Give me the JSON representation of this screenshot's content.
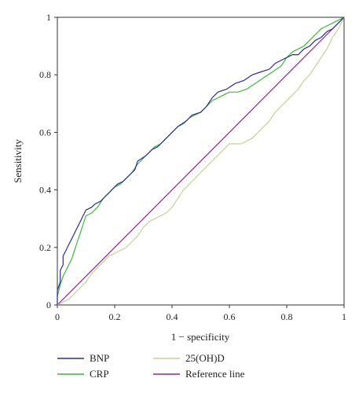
{
  "chart_data": {
    "type": "line",
    "title": "",
    "xlabel": "1 − specificity",
    "ylabel": "Sensitivity",
    "xlim": [
      0,
      1
    ],
    "ylim": [
      0,
      1
    ],
    "x_ticks": [
      "0",
      "0.2",
      "0.4",
      "0.6",
      "0.8",
      "1"
    ],
    "y_ticks": [
      "0",
      "0.2",
      "0.4",
      "0.6",
      "0.8",
      "1"
    ],
    "grid": false,
    "legend_position": "bottom",
    "series": [
      {
        "name": "BNP",
        "color": "#2e2e8c",
        "points": [
          [
            0,
            0
          ],
          [
            0,
            0.05
          ],
          [
            0.01,
            0.08
          ],
          [
            0.01,
            0.12
          ],
          [
            0.02,
            0.14
          ],
          [
            0.02,
            0.17
          ],
          [
            0.03,
            0.19
          ],
          [
            0.04,
            0.21
          ],
          [
            0.05,
            0.23
          ],
          [
            0.06,
            0.25
          ],
          [
            0.07,
            0.27
          ],
          [
            0.08,
            0.29
          ],
          [
            0.09,
            0.31
          ],
          [
            0.1,
            0.33
          ],
          [
            0.12,
            0.34
          ],
          [
            0.13,
            0.35
          ],
          [
            0.15,
            0.36
          ],
          [
            0.17,
            0.38
          ],
          [
            0.19,
            0.4
          ],
          [
            0.21,
            0.42
          ],
          [
            0.23,
            0.43
          ],
          [
            0.25,
            0.45
          ],
          [
            0.27,
            0.47
          ],
          [
            0.28,
            0.5
          ],
          [
            0.31,
            0.52
          ],
          [
            0.33,
            0.54
          ],
          [
            0.35,
            0.55
          ],
          [
            0.37,
            0.57
          ],
          [
            0.4,
            0.6
          ],
          [
            0.42,
            0.62
          ],
          [
            0.45,
            0.64
          ],
          [
            0.47,
            0.66
          ],
          [
            0.5,
            0.67
          ],
          [
            0.52,
            0.69
          ],
          [
            0.54,
            0.72
          ],
          [
            0.56,
            0.74
          ],
          [
            0.59,
            0.75
          ],
          [
            0.62,
            0.77
          ],
          [
            0.65,
            0.78
          ],
          [
            0.68,
            0.8
          ],
          [
            0.71,
            0.81
          ],
          [
            0.74,
            0.82
          ],
          [
            0.76,
            0.84
          ],
          [
            0.78,
            0.85
          ],
          [
            0.8,
            0.86
          ],
          [
            0.82,
            0.87
          ],
          [
            0.84,
            0.87
          ],
          [
            0.86,
            0.89
          ],
          [
            0.88,
            0.9
          ],
          [
            0.9,
            0.92
          ],
          [
            0.92,
            0.93
          ],
          [
            0.94,
            0.95
          ],
          [
            0.96,
            0.96
          ],
          [
            0.98,
            0.98
          ],
          [
            1,
            1
          ]
        ]
      },
      {
        "name": "CRP",
        "color": "#3cb83c",
        "points": [
          [
            0,
            0
          ],
          [
            0,
            0.03
          ],
          [
            0.01,
            0.07
          ],
          [
            0.02,
            0.1
          ],
          [
            0.03,
            0.12
          ],
          [
            0.04,
            0.14
          ],
          [
            0.05,
            0.16
          ],
          [
            0.06,
            0.19
          ],
          [
            0.07,
            0.22
          ],
          [
            0.08,
            0.25
          ],
          [
            0.09,
            0.28
          ],
          [
            0.1,
            0.31
          ],
          [
            0.12,
            0.32
          ],
          [
            0.14,
            0.34
          ],
          [
            0.16,
            0.37
          ],
          [
            0.18,
            0.39
          ],
          [
            0.2,
            0.41
          ],
          [
            0.22,
            0.42
          ],
          [
            0.24,
            0.44
          ],
          [
            0.26,
            0.46
          ],
          [
            0.28,
            0.49
          ],
          [
            0.3,
            0.51
          ],
          [
            0.32,
            0.53
          ],
          [
            0.34,
            0.55
          ],
          [
            0.36,
            0.56
          ],
          [
            0.38,
            0.58
          ],
          [
            0.4,
            0.6
          ],
          [
            0.42,
            0.62
          ],
          [
            0.44,
            0.63
          ],
          [
            0.46,
            0.65
          ],
          [
            0.48,
            0.66
          ],
          [
            0.5,
            0.67
          ],
          [
            0.52,
            0.69
          ],
          [
            0.54,
            0.71
          ],
          [
            0.56,
            0.72
          ],
          [
            0.58,
            0.73
          ],
          [
            0.6,
            0.74
          ],
          [
            0.63,
            0.74
          ],
          [
            0.66,
            0.75
          ],
          [
            0.69,
            0.77
          ],
          [
            0.72,
            0.79
          ],
          [
            0.75,
            0.81
          ],
          [
            0.78,
            0.83
          ],
          [
            0.8,
            0.86
          ],
          [
            0.82,
            0.88
          ],
          [
            0.84,
            0.89
          ],
          [
            0.86,
            0.9
          ],
          [
            0.88,
            0.92
          ],
          [
            0.9,
            0.94
          ],
          [
            0.92,
            0.96
          ],
          [
            0.94,
            0.97
          ],
          [
            0.96,
            0.98
          ],
          [
            0.98,
            0.99
          ],
          [
            1,
            1
          ]
        ]
      },
      {
        "name": "25(OH)D",
        "color": "#c9cf9a",
        "points": [
          [
            0,
            0
          ],
          [
            0.02,
            0.01
          ],
          [
            0.04,
            0.02
          ],
          [
            0.06,
            0.04
          ],
          [
            0.08,
            0.06
          ],
          [
            0.1,
            0.08
          ],
          [
            0.12,
            0.11
          ],
          [
            0.14,
            0.13
          ],
          [
            0.16,
            0.15
          ],
          [
            0.18,
            0.17
          ],
          [
            0.2,
            0.18
          ],
          [
            0.22,
            0.19
          ],
          [
            0.24,
            0.2
          ],
          [
            0.26,
            0.22
          ],
          [
            0.28,
            0.24
          ],
          [
            0.3,
            0.27
          ],
          [
            0.32,
            0.29
          ],
          [
            0.34,
            0.3
          ],
          [
            0.36,
            0.31
          ],
          [
            0.38,
            0.32
          ],
          [
            0.4,
            0.34
          ],
          [
            0.42,
            0.37
          ],
          [
            0.44,
            0.4
          ],
          [
            0.46,
            0.42
          ],
          [
            0.48,
            0.44
          ],
          [
            0.5,
            0.46
          ],
          [
            0.52,
            0.48
          ],
          [
            0.54,
            0.5
          ],
          [
            0.56,
            0.52
          ],
          [
            0.58,
            0.54
          ],
          [
            0.6,
            0.56
          ],
          [
            0.62,
            0.56
          ],
          [
            0.64,
            0.56
          ],
          [
            0.66,
            0.57
          ],
          [
            0.68,
            0.58
          ],
          [
            0.7,
            0.6
          ],
          [
            0.72,
            0.62
          ],
          [
            0.74,
            0.64
          ],
          [
            0.76,
            0.67
          ],
          [
            0.78,
            0.69
          ],
          [
            0.8,
            0.71
          ],
          [
            0.82,
            0.73
          ],
          [
            0.84,
            0.75
          ],
          [
            0.86,
            0.78
          ],
          [
            0.88,
            0.8
          ],
          [
            0.9,
            0.83
          ],
          [
            0.92,
            0.86
          ],
          [
            0.94,
            0.89
          ],
          [
            0.96,
            0.93
          ],
          [
            0.98,
            0.96
          ],
          [
            1,
            1
          ]
        ]
      },
      {
        "name": "Reference line",
        "color": "#8e2a8e",
        "points": [
          [
            0,
            0
          ],
          [
            1,
            1
          ]
        ]
      }
    ]
  }
}
